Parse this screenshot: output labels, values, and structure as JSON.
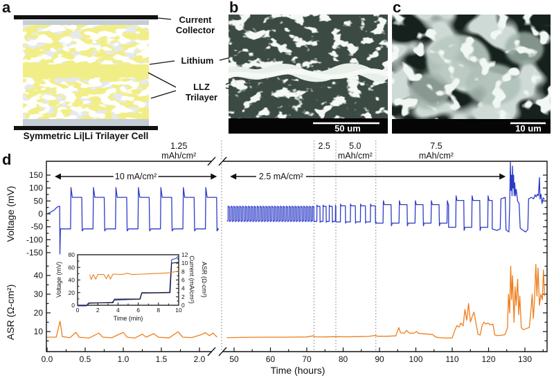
{
  "figure_labels": {
    "a": "a",
    "b": "b",
    "c": "c",
    "d": "d"
  },
  "panel_a": {
    "caption": "Symmetric Li|Li Trilayer Cell",
    "label_current_collector_1": "Current",
    "label_current_collector_2": "Collector",
    "label_lithium": "Lithium",
    "label_llz_1": "LLZ",
    "label_llz_2": "Trilayer",
    "colors": {
      "yellow": "#f1ee87",
      "gray": "#c6ced5",
      "collector_black": "#111111"
    }
  },
  "panel_b": {
    "scale_bar_label": "50 um"
  },
  "panel_c": {
    "scale_bar_label": "10 um"
  },
  "chart_data": [
    {
      "id": "main",
      "type": "line",
      "xlabel": "Time (hours)",
      "x_axis": {
        "broken": true,
        "left_segment": {
          "range_hours": [
            0,
            2.25
          ],
          "major_ticks": [
            0,
            0.5,
            1,
            1.5,
            2
          ],
          "minor_step": 0.25
        },
        "right_segment": {
          "range_hours": [
            47.7,
            136
          ],
          "major_ticks": [
            50,
            60,
            70,
            80,
            90,
            100,
            110,
            120,
            130
          ],
          "minor_step": 5
        }
      },
      "y_axis_voltage": {
        "label": "Voltage (mV)",
        "major_ticks": [
          150,
          100,
          50,
          0,
          -50,
          -100,
          -150
        ],
        "minor_ticks": [
          125,
          75,
          25,
          -25,
          -75,
          -125
        ]
      },
      "y_axis_asr": {
        "label": "ASR (Ω-cm²)",
        "major_ticks": [
          40,
          30,
          20,
          10
        ],
        "minor_ticks": [
          45,
          35,
          25,
          15,
          5
        ]
      },
      "capacity_annotations": [
        {
          "text_line1": "1.25",
          "text_line2": "mAh/cm²",
          "center_hour": 1.73,
          "segment": "left"
        },
        {
          "text_line1": "2.5",
          "text_line2": "",
          "center_hour": 74.8,
          "segment": "right"
        },
        {
          "text_line1": "5.0",
          "text_line2": "mAh/cm²",
          "center_hour": 83.3,
          "segment": "right"
        },
        {
          "text_line1": "7.5",
          "text_line2": "mAh/cm²",
          "center_hour": 105.6,
          "segment": "right"
        }
      ],
      "current_density_arrows": [
        {
          "label": "10 mA/cm²",
          "from_hour": 0.1,
          "to_hour": 2.23,
          "segment": "left"
        },
        {
          "label": "2.5 mA/cm²",
          "from_hour": 48.9,
          "to_hour": 124.7,
          "segment": "right"
        }
      ],
      "dotted_boundaries_hours": [
        72,
        78,
        89
      ],
      "series": {
        "voltage": {
          "color": "#2b3bc8",
          "left_ramp_points": [
            [
              0,
              0
            ],
            [
              0.04,
              6
            ],
            [
              0.09,
              14
            ],
            [
              0.13,
              26
            ],
            [
              0.165,
              30
            ],
            [
              0.168,
              -155
            ],
            [
              0.175,
              -58
            ]
          ],
          "left_square": {
            "t0": 0.175,
            "t1": 2.23,
            "period": 0.295,
            "high": 64,
            "low": -58,
            "overshoot": 38,
            "undershoot": 8
          },
          "right_squares": [
            {
              "t0": 48.0,
              "t1": 72,
              "period": 0.8,
              "high": 27,
              "low": -27,
              "overshoot": 3,
              "undershoot": 3
            },
            {
              "t0": 72,
              "t1": 78,
              "period": 1.7,
              "high": 29,
              "low": -29,
              "overshoot": 5,
              "undershoot": 4
            },
            {
              "t0": 78,
              "t1": 89,
              "period": 2.75,
              "high": 31,
              "low": -31,
              "overshoot": 7,
              "undershoot": 5
            },
            {
              "t0": 89,
              "t1": 109,
              "period": 4.4,
              "high": 36,
              "low": -36,
              "overshoot": 15,
              "undershoot": 10
            },
            {
              "t0": 109,
              "t1": 121,
              "period": 4.4,
              "high": 52,
              "low": -52,
              "overshoot": 18,
              "undershoot": 12
            }
          ],
          "right_tail_points": [
            [
              121,
              -58
            ],
            [
              122.3,
              -64
            ],
            [
              123.2,
              -58
            ],
            [
              123.4,
              58
            ],
            [
              124.6,
              64
            ],
            [
              124.8,
              -62
            ],
            [
              125.6,
              -70
            ],
            [
              125.8,
              35
            ],
            [
              126.0,
              200
            ],
            [
              126.15,
              90
            ],
            [
              126.3,
              150
            ],
            [
              126.45,
              70
            ],
            [
              126.6,
              185
            ],
            [
              126.75,
              100
            ],
            [
              126.9,
              150
            ],
            [
              127.05,
              70
            ],
            [
              127.2,
              120
            ],
            [
              127.4,
              70
            ],
            [
              127.6,
              95
            ],
            [
              128.0,
              50
            ],
            [
              128.4,
              40
            ],
            [
              128.7,
              -55
            ],
            [
              129.3,
              -62
            ],
            [
              130.2,
              -70
            ],
            [
              130.8,
              -60
            ],
            [
              131.0,
              58
            ],
            [
              131.8,
              64
            ],
            [
              132.4,
              58
            ],
            [
              132.8,
              74
            ],
            [
              133.1,
              66
            ],
            [
              133.4,
              76
            ],
            [
              133.7,
              70
            ],
            [
              134.0,
              140
            ],
            [
              134.15,
              58
            ],
            [
              134.4,
              76
            ],
            [
              134.7,
              40
            ],
            [
              135.0,
              62
            ],
            [
              135.4,
              56
            ]
          ]
        },
        "asr": {
          "color": "#ee7d1a",
          "left_points": [
            [
              0,
              7
            ],
            [
              0.12,
              7
            ],
            [
              0.17,
              15.5
            ],
            [
              0.2,
              7.3
            ],
            [
              0.3,
              6.7
            ],
            [
              0.38,
              9.6
            ],
            [
              0.42,
              7
            ],
            [
              0.55,
              6.5
            ],
            [
              0.68,
              9.2
            ],
            [
              0.73,
              7
            ],
            [
              0.85,
              6.7
            ],
            [
              1.0,
              9.6
            ],
            [
              1.05,
              7
            ],
            [
              1.15,
              6.5
            ],
            [
              1.25,
              8.6
            ],
            [
              1.3,
              7
            ],
            [
              1.4,
              8.9
            ],
            [
              1.46,
              7
            ],
            [
              1.6,
              6.6
            ],
            [
              1.72,
              9.9
            ],
            [
              1.78,
              7
            ],
            [
              1.9,
              6.8
            ],
            [
              2.02,
              8.3
            ],
            [
              2.08,
              9.4
            ],
            [
              2.13,
              7.8
            ],
            [
              2.18,
              9.2
            ],
            [
              2.23,
              7
            ]
          ],
          "right_points": [
            [
              48,
              6.7
            ],
            [
              52,
              6.9
            ],
            [
              58,
              7
            ],
            [
              64,
              7
            ],
            [
              70,
              7.1
            ],
            [
              71.8,
              7.7
            ],
            [
              72.3,
              7.2
            ],
            [
              75,
              7.1
            ],
            [
              78,
              7.3
            ],
            [
              81,
              7.2
            ],
            [
              84,
              7.3
            ],
            [
              87,
              7.4
            ],
            [
              88.8,
              7.9
            ],
            [
              89.5,
              7.5
            ],
            [
              92,
              7.5
            ],
            [
              94.5,
              7.7
            ],
            [
              95.3,
              12.1
            ],
            [
              95.8,
              9.4
            ],
            [
              96.8,
              9.1
            ],
            [
              97.4,
              10.6
            ],
            [
              98.2,
              9.2
            ],
            [
              99.4,
              9.1
            ],
            [
              100.2,
              10
            ],
            [
              100.8,
              9
            ],
            [
              102,
              8.8
            ],
            [
              103.4,
              8.6
            ],
            [
              104.6,
              8.4
            ],
            [
              105.4,
              7.1
            ],
            [
              106.6,
              6.7
            ],
            [
              108,
              6.5
            ],
            [
              110,
              6.6
            ],
            [
              110.8,
              11
            ],
            [
              111.3,
              13.2
            ],
            [
              111.9,
              12.4
            ],
            [
              112.4,
              14.6
            ],
            [
              113,
              13
            ],
            [
              113.5,
              21.8
            ],
            [
              114,
              16
            ],
            [
              114.5,
              25
            ],
            [
              115,
              15.2
            ],
            [
              115.5,
              18
            ],
            [
              116,
              20.4
            ],
            [
              116.6,
              13.8
            ],
            [
              117.1,
              8.6
            ],
            [
              117.7,
              8.1
            ],
            [
              118.2,
              13
            ],
            [
              118.7,
              15
            ],
            [
              119.3,
              14
            ],
            [
              119.8,
              14.6
            ],
            [
              120.5,
              13.6
            ],
            [
              121.2,
              14
            ],
            [
              121.7,
              8.2
            ],
            [
              122.5,
              7.8
            ],
            [
              123.5,
              8
            ],
            [
              124.5,
              8.3
            ],
            [
              125.2,
              12
            ],
            [
              125.5,
              30
            ],
            [
              125.8,
              20
            ],
            [
              126.1,
              45
            ],
            [
              126.35,
              27
            ],
            [
              126.6,
              40
            ],
            [
              127,
              15
            ],
            [
              127.3,
              34
            ],
            [
              127.6,
              24
            ],
            [
              128,
              38
            ],
            [
              128.3,
              19
            ],
            [
              128.6,
              29
            ],
            [
              129,
              12
            ],
            [
              129.6,
              11
            ],
            [
              130.4,
              11.6
            ],
            [
              131.2,
              12.2
            ],
            [
              131.6,
              20
            ],
            [
              132,
              30
            ],
            [
              132.3,
              17
            ],
            [
              132.6,
              25
            ],
            [
              133,
              47
            ],
            [
              133.3,
              29
            ],
            [
              133.6,
              44
            ],
            [
              134,
              24
            ],
            [
              134.4,
              30
            ],
            [
              134.8,
              27
            ],
            [
              135.1,
              43
            ],
            [
              135.4,
              29
            ]
          ]
        }
      }
    },
    {
      "id": "inset",
      "type": "line",
      "xlabel": "Time (min)",
      "x_axis": {
        "major_ticks": [
          0,
          2,
          4,
          6,
          8,
          10
        ],
        "minor_step": 1,
        "range": [
          0,
          10
        ]
      },
      "y_left": {
        "label": "Voltage (mV)",
        "color": "#2b3bc8",
        "major_ticks": [
          0,
          20,
          40,
          60,
          80
        ],
        "minor_step": 10,
        "range": [
          -6,
          80
        ]
      },
      "y_right_current": {
        "label": "Current (mA/cm²)",
        "color": "#111111",
        "major_ticks": [
          0,
          2,
          4,
          6,
          8,
          10,
          12
        ],
        "minor_step": 1,
        "range": [
          -1,
          12
        ]
      },
      "y_right_asr_label": {
        "label": "ASR (Ω-cm²)",
        "color": "#ee7d1a"
      },
      "series": {
        "voltage_mV": {
          "color": "#2b3bc8",
          "points": [
            [
              0,
              -1
            ],
            [
              0.9,
              -1
            ],
            [
              1.05,
              3
            ],
            [
              1.6,
              3.5
            ],
            [
              2.2,
              4
            ],
            [
              3.4,
              4.5
            ],
            [
              3.65,
              8
            ],
            [
              5,
              9
            ],
            [
              6.15,
              9.5
            ],
            [
              6.35,
              20
            ],
            [
              7.5,
              20
            ],
            [
              9.1,
              20.5
            ],
            [
              9.3,
              72
            ],
            [
              9.7,
              74
            ],
            [
              10,
              78
            ]
          ]
        },
        "current_mA": {
          "color": "#111111",
          "points": [
            [
              0,
              0
            ],
            [
              1.0,
              0
            ],
            [
              1.1,
              0.55
            ],
            [
              3.5,
              0.6
            ],
            [
              3.65,
              1.45
            ],
            [
              6.2,
              1.5
            ],
            [
              6.35,
              2.9
            ],
            [
              9.15,
              3
            ],
            [
              9.3,
              10
            ],
            [
              10,
              10.2
            ]
          ]
        },
        "asr": {
          "color": "#ee7d1a",
          "points": [
            [
              1.2,
              7.3
            ],
            [
              1.35,
              6.1
            ],
            [
              1.55,
              7.3
            ],
            [
              1.8,
              6.2
            ],
            [
              2.0,
              7.3
            ],
            [
              2.6,
              7.3
            ],
            [
              2.85,
              6.3
            ],
            [
              3.05,
              7.3
            ],
            [
              3.25,
              6.2
            ],
            [
              3.5,
              7.4
            ],
            [
              4.4,
              7.3
            ],
            [
              4.9,
              7.6
            ],
            [
              5.4,
              7.3
            ],
            [
              6.5,
              7.4
            ],
            [
              7.2,
              7.5
            ],
            [
              8.2,
              7.6
            ],
            [
              9.0,
              7.7
            ],
            [
              9.5,
              7.9
            ],
            [
              10,
              8.1
            ]
          ]
        }
      }
    }
  ]
}
